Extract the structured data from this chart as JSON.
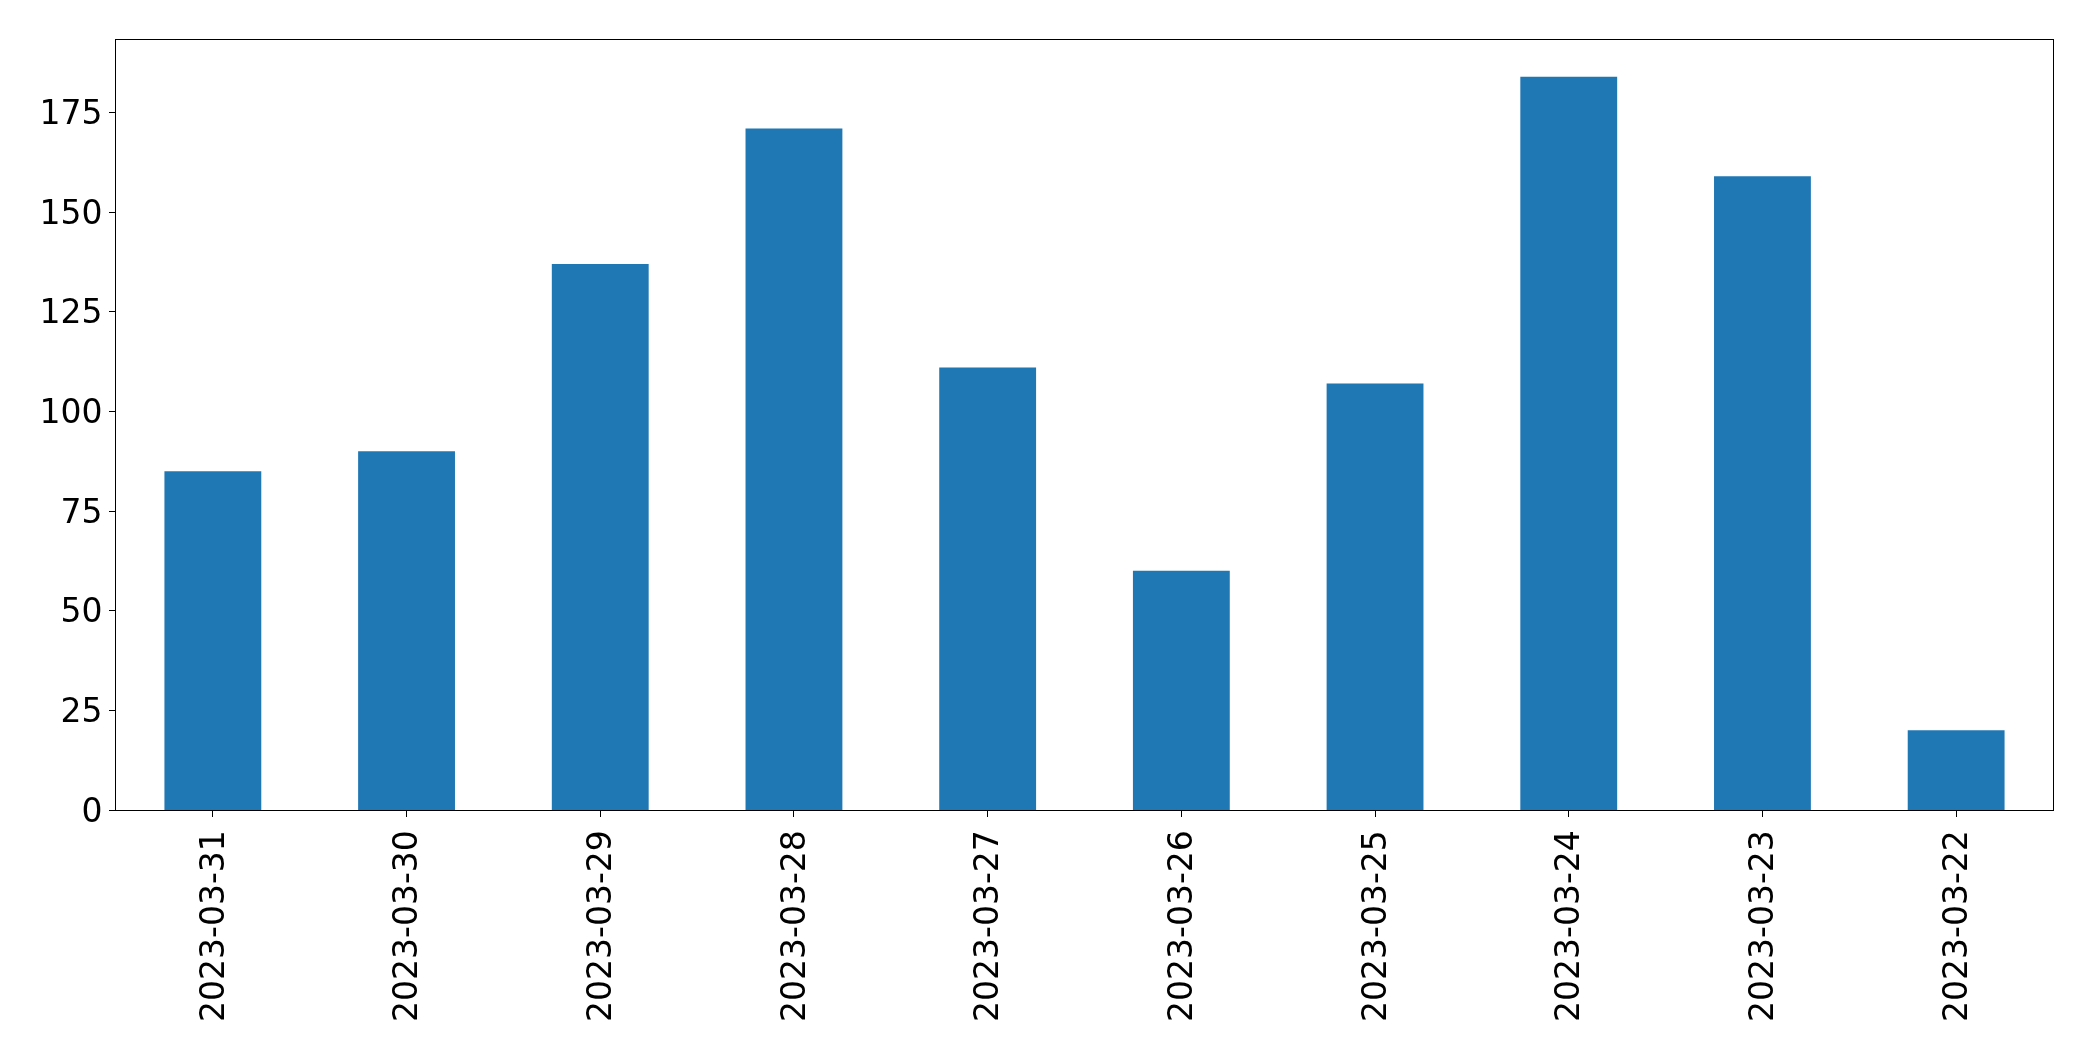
{
  "chart_data": {
    "type": "bar",
    "categories": [
      "2023-03-31",
      "2023-03-30",
      "2023-03-29",
      "2023-03-28",
      "2023-03-27",
      "2023-03-26",
      "2023-03-25",
      "2023-03-24",
      "2023-03-23",
      "2023-03-22"
    ],
    "values": [
      85,
      90,
      137,
      171,
      111,
      60,
      107,
      184,
      159,
      20
    ],
    "color": "#1f77b4",
    "ylim": [
      0,
      193.2
    ],
    "yticks": [
      0,
      25,
      50,
      75,
      100,
      125,
      150,
      175
    ]
  }
}
